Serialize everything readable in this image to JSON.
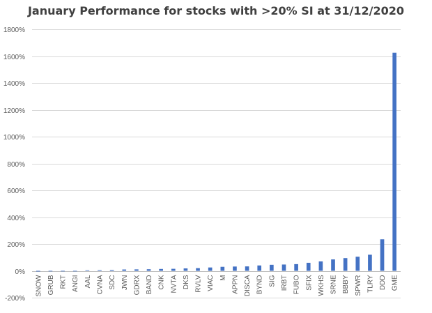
{
  "chart_data": {
    "type": "bar",
    "title": "January Performance for stocks with >20% SI at 31/12/2020",
    "xlabel": "",
    "ylabel": "",
    "ylim": [
      -200,
      1800
    ],
    "ytick_step": 200,
    "ytick_format": "percent",
    "grid": true,
    "legend": "none",
    "bar_color": "#4472C4",
    "categories": [
      "SNOW",
      "GRUB",
      "RKT",
      "ANGI",
      "AAL",
      "CVNA",
      "SDC",
      "JWN",
      "GDRX",
      "BAND",
      "CNK",
      "NVTA",
      "DKS",
      "RVLV",
      "VIAC",
      "M",
      "APPN",
      "DISCA",
      "BYND",
      "SIG",
      "IRBT",
      "FUBO",
      "SFIX",
      "WKHS",
      "SRNE",
      "BBBY",
      "SPWR",
      "TLRY",
      "DDD",
      "GME"
    ],
    "values": [
      -5,
      -2,
      -1,
      -1,
      4,
      5,
      6,
      10,
      11,
      12,
      14,
      15,
      18,
      20,
      25,
      30,
      32,
      33,
      40,
      45,
      47,
      50,
      60,
      70,
      85,
      95,
      105,
      120,
      235,
      1625
    ]
  }
}
